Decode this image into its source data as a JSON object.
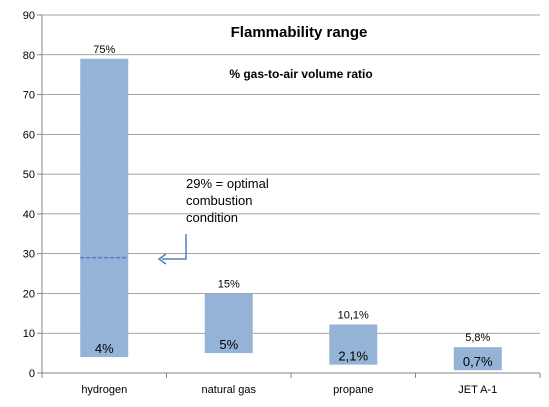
{
  "chart_data": {
    "type": "bar",
    "title": "Flammability range",
    "subtitle": "% gas-to-air volume ratio",
    "xlabel": "",
    "ylabel": "",
    "ylim": [
      0,
      90
    ],
    "yticks": [
      0,
      10,
      20,
      30,
      40,
      50,
      60,
      70,
      80,
      90
    ],
    "grid": true,
    "legend": "none",
    "categories": [
      "hydrogen",
      "natural gas",
      "propane",
      "JET A-1"
    ],
    "series": [
      {
        "low": [
          4,
          5,
          2.1,
          0.7
        ],
        "high": [
          79,
          20,
          12.2,
          6.5
        ],
        "color": "#95b3d7"
      }
    ],
    "top_labels": [
      "75%",
      "15%",
      "10,1%",
      "5,8%"
    ],
    "bottom_labels": [
      "4%",
      "5%",
      "2,1%",
      "0,7%"
    ],
    "reference_line": {
      "category_index": 0,
      "value": 29,
      "color": "#4f81bd"
    },
    "annotation": {
      "lines": [
        "29% = optimal",
        "combustion",
        "condition"
      ],
      "arrow_color": "#4f81bd"
    },
    "colors": {
      "bar": "#95b3d7",
      "grid": "#868686",
      "axis": "#868686",
      "accent": "#4f81bd"
    }
  }
}
